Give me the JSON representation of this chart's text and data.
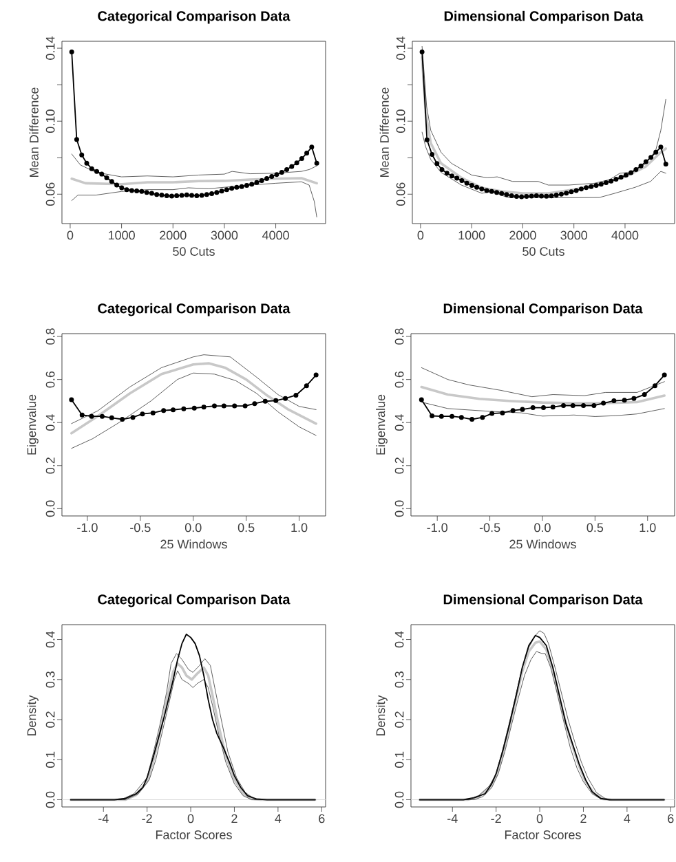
{
  "chart_data": [
    {
      "type": "line",
      "title": "Categorical Comparison Data",
      "xlabel": "50 Cuts",
      "ylabel": "Mean Difference",
      "xlim": [
        -160,
        4970
      ],
      "ylim": [
        0.0439,
        0.1438
      ],
      "xticks": [
        0,
        1000,
        2000,
        3000,
        4000
      ],
      "yticks": [
        0.06,
        {
          "value": 0.08,
          "label": null
        },
        {
          "value": 0.1,
          "label": "0.10"
        },
        {
          "value": 0.12,
          "label": null
        },
        0.14
      ],
      "series": [
        {
          "color": "#1a1a1a",
          "x": [
            30,
            200,
            500,
            1000,
            1500,
            2000,
            2500,
            3000,
            3150,
            3500,
            4000,
            4500,
            4650,
            4798
          ],
          "values": [
            0.082,
            0.076,
            0.072,
            0.0695,
            0.07,
            0.0695,
            0.0705,
            0.071,
            0.0725,
            0.0712,
            0.0715,
            0.0725,
            0.0735,
            0.0755
          ]
        },
        {
          "color": "#1a1a1a",
          "x": [
            30,
            150,
            500,
            1000,
            1500,
            2000,
            2300,
            2700,
            3000,
            3500,
            4000,
            4500,
            4650,
            4750,
            4798
          ],
          "values": [
            0.0565,
            0.0595,
            0.0595,
            0.0615,
            0.0625,
            0.0625,
            0.0635,
            0.063,
            0.0638,
            0.065,
            0.066,
            0.0668,
            0.065,
            0.056,
            0.0475
          ]
        },
        {
          "color": "#c8c8c8",
          "x": [
            30,
            300,
            1000,
            1500,
            2000,
            2500,
            3000,
            3500,
            4000,
            4500,
            4798
          ],
          "values": [
            0.0685,
            0.066,
            0.0655,
            0.0665,
            0.0665,
            0.0672,
            0.0673,
            0.068,
            0.0685,
            0.0688,
            0.066
          ]
        },
        {
          "color": "#000000",
          "marker": "circle",
          "x": [
            30,
            127,
            225,
            322,
            419,
            517,
            614,
            711,
            808,
            906,
            1003,
            1100,
            1198,
            1295,
            1392,
            1490,
            1587,
            1684,
            1781,
            1879,
            1976,
            2073,
            2171,
            2268,
            2365,
            2463,
            2560,
            2657,
            2754,
            2852,
            2949,
            3046,
            3144,
            3241,
            3338,
            3436,
            3533,
            3630,
            3727,
            3825,
            3922,
            4019,
            4117,
            4214,
            4311,
            4409,
            4506,
            4603,
            4700,
            4798
          ],
          "values": [
            0.138,
            0.09,
            0.0815,
            0.077,
            0.074,
            0.0725,
            0.071,
            0.069,
            0.067,
            0.065,
            0.0635,
            0.0625,
            0.062,
            0.0618,
            0.0615,
            0.061,
            0.0605,
            0.0598,
            0.0595,
            0.0592,
            0.059,
            0.0592,
            0.0594,
            0.0596,
            0.0594,
            0.0592,
            0.0594,
            0.0598,
            0.0603,
            0.061,
            0.0617,
            0.0625,
            0.0632,
            0.0638,
            0.0642,
            0.0648,
            0.0655,
            0.0664,
            0.0675,
            0.0686,
            0.0697,
            0.0708,
            0.072,
            0.0735,
            0.0752,
            0.0772,
            0.0795,
            0.0825,
            0.0858,
            0.077
          ]
        }
      ]
    },
    {
      "type": "line",
      "title": "Dimensional Comparison Data",
      "xlabel": "50 Cuts",
      "ylabel": "Mean Difference",
      "xlim": [
        -160,
        4970
      ],
      "ylim": [
        0.0439,
        0.1438
      ],
      "xticks": [
        0,
        1000,
        2000,
        3000,
        4000
      ],
      "yticks": [
        0.06,
        {
          "value": 0.08,
          "label": null
        },
        {
          "value": 0.1,
          "label": "0.10"
        },
        {
          "value": 0.12,
          "label": null
        },
        0.14
      ],
      "series": [
        {
          "color": "#1a1a1a",
          "x": [
            30,
            60,
            120,
            200,
            400,
            600,
            1000,
            1300,
            1500,
            1800,
            2300,
            2500,
            2900,
            3400,
            3700,
            3900,
            4100,
            4400,
            4600,
            4700,
            4798
          ],
          "values": [
            0.141,
            0.13,
            0.108,
            0.095,
            0.083,
            0.077,
            0.0705,
            0.069,
            0.0695,
            0.067,
            0.067,
            0.065,
            0.065,
            0.066,
            0.068,
            0.0715,
            0.072,
            0.0765,
            0.084,
            0.095,
            0.112
          ]
        },
        {
          "color": "#1a1a1a",
          "x": [
            30,
            100,
            200,
            400,
            800,
            1200,
            1400,
            1700,
            2400,
            2500,
            3500,
            3800,
            4200,
            4500,
            4700,
            4798
          ],
          "values": [
            0.094,
            0.086,
            0.079,
            0.072,
            0.065,
            0.0605,
            0.0615,
            0.0582,
            0.0582,
            0.058,
            0.0582,
            0.0605,
            0.0638,
            0.067,
            0.0725,
            0.0715
          ]
        },
        {
          "color": "#c8c8c8",
          "x": [
            30,
            100,
            200,
            400,
            800,
            1200,
            1600,
            2000,
            2500,
            3000,
            3500,
            4000,
            4400,
            4700,
            4798
          ],
          "values": [
            0.135,
            0.105,
            0.088,
            0.077,
            0.069,
            0.0635,
            0.0615,
            0.0605,
            0.0605,
            0.0625,
            0.0655,
            0.0695,
            0.075,
            0.083,
            0.085
          ]
        },
        {
          "color": "#000000",
          "marker": "circle",
          "x": [
            30,
            127,
            225,
            322,
            419,
            517,
            614,
            711,
            808,
            906,
            1003,
            1100,
            1198,
            1295,
            1392,
            1490,
            1587,
            1684,
            1781,
            1879,
            1976,
            2073,
            2171,
            2268,
            2365,
            2463,
            2560,
            2657,
            2754,
            2852,
            2949,
            3046,
            3144,
            3241,
            3338,
            3436,
            3533,
            3630,
            3727,
            3825,
            3922,
            4019,
            4117,
            4214,
            4311,
            4409,
            4506,
            4603,
            4700,
            4798
          ],
          "values": [
            0.138,
            0.0898,
            0.0818,
            0.0768,
            0.0735,
            0.0715,
            0.07,
            0.0688,
            0.0675,
            0.066,
            0.0648,
            0.0638,
            0.0628,
            0.062,
            0.0615,
            0.061,
            0.0604,
            0.0598,
            0.0592,
            0.0588,
            0.0586,
            0.0588,
            0.059,
            0.0592,
            0.059,
            0.0589,
            0.0591,
            0.0595,
            0.06,
            0.0606,
            0.0613,
            0.062,
            0.0628,
            0.0636,
            0.0642,
            0.0648,
            0.0655,
            0.0663,
            0.0672,
            0.0682,
            0.0693,
            0.0705,
            0.0718,
            0.0735,
            0.0755,
            0.0778,
            0.0802,
            0.083,
            0.0858,
            0.0765
          ]
        }
      ]
    },
    {
      "type": "line",
      "title": "Categorical Comparison Data",
      "xlabel": "25 Windows",
      "ylabel": "Eigenvalue",
      "xlim": [
        -1.24,
        1.25
      ],
      "ylim": [
        -0.034,
        0.813
      ],
      "xticks": [
        {
          "value": -1,
          "label": "-1.0"
        },
        -0.5,
        {
          "value": 0,
          "label": "0.0"
        },
        0.5,
        {
          "value": 1,
          "label": "1.0"
        }
      ],
      "yticks": [
        {
          "value": 0,
          "label": "0.0"
        },
        0.2,
        0.4,
        0.6,
        0.8
      ],
      "series": [
        {
          "color": "#1a1a1a",
          "x": [
            -1.15,
            -0.9,
            -0.6,
            -0.3,
            0,
            0.1,
            0.35,
            0.6,
            0.8,
            1.0,
            1.16
          ],
          "values": [
            0.395,
            0.455,
            0.565,
            0.655,
            0.705,
            0.715,
            0.705,
            0.61,
            0.53,
            0.475,
            0.46
          ]
        },
        {
          "color": "#1a1a1a",
          "x": [
            -1.15,
            -0.95,
            -0.7,
            -0.4,
            -0.15,
            0,
            0.2,
            0.4,
            0.6,
            0.8,
            1.0,
            1.16
          ],
          "values": [
            0.28,
            0.325,
            0.4,
            0.5,
            0.6,
            0.63,
            0.625,
            0.595,
            0.535,
            0.45,
            0.38,
            0.34
          ]
        },
        {
          "color": "#c8c8c8",
          "x": [
            -1.15,
            -0.9,
            -0.6,
            -0.3,
            0,
            0.15,
            0.3,
            0.5,
            0.7,
            0.9,
            1.16
          ],
          "values": [
            0.35,
            0.43,
            0.535,
            0.625,
            0.67,
            0.675,
            0.655,
            0.6,
            0.525,
            0.46,
            0.395
          ]
        },
        {
          "color": "#000000",
          "marker": "circle",
          "x": [
            -1.15,
            -1.05,
            -0.96,
            -0.86,
            -0.77,
            -0.67,
            -0.57,
            -0.48,
            -0.38,
            -0.28,
            -0.19,
            -0.09,
            0.01,
            0.1,
            0.2,
            0.29,
            0.39,
            0.49,
            0.58,
            0.68,
            0.78,
            0.87,
            0.97,
            1.07,
            1.16
          ],
          "values": [
            0.506,
            0.435,
            0.429,
            0.429,
            0.422,
            0.415,
            0.424,
            0.44,
            0.445,
            0.456,
            0.459,
            0.464,
            0.467,
            0.472,
            0.477,
            0.477,
            0.477,
            0.477,
            0.488,
            0.499,
            0.502,
            0.512,
            0.527,
            0.571,
            0.621
          ]
        }
      ]
    },
    {
      "type": "line",
      "title": "Dimensional Comparison Data",
      "xlabel": "25 Windows",
      "ylabel": "Eigenvalue",
      "xlim": [
        -1.25,
        1.257
      ],
      "ylim": [
        -0.034,
        0.813
      ],
      "xticks": [
        {
          "value": -1,
          "label": "-1.0"
        },
        -0.5,
        {
          "value": 0,
          "label": "0.0"
        },
        0.5,
        {
          "value": 1,
          "label": "1.0"
        }
      ],
      "yticks": [
        {
          "value": 0,
          "label": "0.0"
        },
        0.2,
        0.4,
        0.6,
        0.8
      ],
      "series": [
        {
          "color": "#1a1a1a",
          "x": [
            -1.15,
            -0.9,
            -0.7,
            -0.4,
            -0.1,
            0.1,
            0.4,
            0.6,
            0.9,
            1.16
          ],
          "values": [
            0.655,
            0.6,
            0.575,
            0.55,
            0.52,
            0.53,
            0.525,
            0.54,
            0.54,
            0.59
          ]
        },
        {
          "color": "#1a1a1a",
          "x": [
            -1.15,
            -0.9,
            -0.5,
            -0.2,
            0,
            0.3,
            0.5,
            0.7,
            0.9,
            1.16
          ],
          "values": [
            0.495,
            0.465,
            0.452,
            0.445,
            0.43,
            0.435,
            0.428,
            0.432,
            0.44,
            0.465
          ]
        },
        {
          "color": "#c8c8c8",
          "x": [
            -1.15,
            -0.9,
            -0.6,
            -0.3,
            0,
            0.3,
            0.6,
            0.9,
            1.16
          ],
          "values": [
            0.565,
            0.53,
            0.51,
            0.5,
            0.493,
            0.49,
            0.49,
            0.495,
            0.525
          ]
        },
        {
          "color": "#000000",
          "marker": "circle",
          "x": [
            -1.15,
            -1.05,
            -0.96,
            -0.86,
            -0.77,
            -0.67,
            -0.57,
            -0.48,
            -0.38,
            -0.28,
            -0.19,
            -0.09,
            0.01,
            0.1,
            0.2,
            0.29,
            0.39,
            0.49,
            0.58,
            0.68,
            0.78,
            0.87,
            0.97,
            1.07,
            1.16
          ],
          "values": [
            0.506,
            0.431,
            0.429,
            0.429,
            0.424,
            0.415,
            0.424,
            0.442,
            0.445,
            0.456,
            0.461,
            0.469,
            0.469,
            0.472,
            0.479,
            0.479,
            0.479,
            0.479,
            0.49,
            0.501,
            0.504,
            0.512,
            0.53,
            0.571,
            0.621
          ]
        }
      ]
    },
    {
      "type": "line",
      "title": "Categorical Comparison Data",
      "xlabel": "Factor Scores",
      "ylabel": "Density",
      "xlim": [
        -5.9,
        6.18
      ],
      "ylim": [
        -0.018,
        0.437
      ],
      "xticks": [
        -4,
        -2,
        0,
        2,
        4,
        6
      ],
      "yticks": [
        {
          "value": 0,
          "label": "0.0"
        },
        0.1,
        0.2,
        0.3,
        0.4
      ],
      "ref_lines": [
        {
          "axis": "y",
          "value": 0,
          "color": "#d9d9d9"
        }
      ],
      "series": [
        {
          "color": "#1a1a1a",
          "x": [
            -5.5,
            -3.2,
            -2.6,
            -2,
            -1.7,
            -1.4,
            -1.1,
            -0.9,
            -0.65,
            -0.4,
            -0.1,
            0.1,
            0.4,
            0.65,
            0.9,
            1.1,
            1.4,
            1.7,
            2.1,
            2.5,
            2.9,
            3.3,
            5.7
          ],
          "values": [
            0,
            0,
            0.015,
            0.055,
            0.12,
            0.19,
            0.27,
            0.34,
            0.365,
            0.35,
            0.325,
            0.318,
            0.335,
            0.352,
            0.335,
            0.28,
            0.2,
            0.12,
            0.055,
            0.018,
            0.003,
            0,
            0
          ]
        },
        {
          "color": "#1a1a1a",
          "x": [
            -5.5,
            -3,
            -2.4,
            -1.9,
            -1.6,
            -1.3,
            -1,
            -0.75,
            -0.6,
            -0.4,
            -0.1,
            0.1,
            0.3,
            0.6,
            0.8,
            1,
            1.3,
            1.6,
            2,
            2.4,
            2.8,
            5.7
          ],
          "values": [
            0,
            0,
            0.015,
            0.05,
            0.1,
            0.17,
            0.24,
            0.3,
            0.322,
            0.3,
            0.29,
            0.28,
            0.29,
            0.3,
            0.28,
            0.235,
            0.16,
            0.095,
            0.04,
            0.01,
            0,
            0
          ]
        },
        {
          "color": "#c8c8c8",
          "x": [
            -5.5,
            -3,
            -2.5,
            -2,
            -1.7,
            -1.4,
            -1.1,
            -0.8,
            -0.6,
            -0.4,
            -0.2,
            0.05,
            0.3,
            0.6,
            0.8,
            1,
            1.3,
            1.6,
            2,
            2.4,
            2.8,
            3.2,
            5.7
          ],
          "values": [
            0,
            0,
            0.012,
            0.045,
            0.1,
            0.17,
            0.25,
            0.32,
            0.34,
            0.33,
            0.31,
            0.3,
            0.315,
            0.33,
            0.31,
            0.26,
            0.18,
            0.11,
            0.05,
            0.015,
            0.002,
            0,
            0
          ]
        },
        {
          "color": "#000000",
          "x": [
            -5.5,
            -3.5,
            -3,
            -2.5,
            -2.2,
            -2,
            -1.7,
            -1.5,
            -1.2,
            -1,
            -0.8,
            -0.6,
            -0.4,
            -0.2,
            0,
            0.2,
            0.4,
            0.6,
            0.8,
            1,
            1.2,
            1.5,
            1.8,
            2,
            2.3,
            2.6,
            3,
            3.5,
            5.7
          ],
          "values": [
            0,
            0,
            0.003,
            0.015,
            0.03,
            0.055,
            0.11,
            0.15,
            0.21,
            0.255,
            0.3,
            0.35,
            0.39,
            0.413,
            0.405,
            0.39,
            0.36,
            0.31,
            0.25,
            0.2,
            0.165,
            0.13,
            0.09,
            0.06,
            0.03,
            0.01,
            0.002,
            0,
            0
          ]
        }
      ]
    },
    {
      "type": "line",
      "title": "Dimensional Comparison Data",
      "xlabel": "Factor Scores",
      "ylabel": "Density",
      "xlim": [
        -5.9,
        6.18
      ],
      "ylim": [
        -0.018,
        0.437
      ],
      "xticks": [
        -4,
        -2,
        0,
        2,
        4,
        6
      ],
      "yticks": [
        {
          "value": 0,
          "label": "0.0"
        },
        0.1,
        0.2,
        0.3,
        0.4
      ],
      "ref_lines": [
        {
          "axis": "y",
          "value": 0,
          "color": "#d9d9d9"
        }
      ],
      "series": [
        {
          "color": "#1a1a1a",
          "x": [
            -5.5,
            -3.3,
            -2.8,
            -2.3,
            -2,
            -1.7,
            -1.4,
            -1.1,
            -0.8,
            -0.5,
            -0.2,
            0,
            0.2,
            0.4,
            0.7,
            1,
            1.3,
            1.6,
            1.9,
            2.2,
            2.6,
            3,
            3.3,
            5.7
          ],
          "values": [
            0,
            0,
            0.01,
            0.035,
            0.065,
            0.125,
            0.19,
            0.26,
            0.33,
            0.38,
            0.41,
            0.422,
            0.415,
            0.39,
            0.33,
            0.265,
            0.2,
            0.145,
            0.095,
            0.055,
            0.018,
            0.003,
            0,
            0
          ]
        },
        {
          "color": "#1a1a1a",
          "x": [
            -5.5,
            -3,
            -2.6,
            -2.2,
            -1.9,
            -1.6,
            -1.3,
            -1,
            -0.7,
            -0.4,
            -0.15,
            0.1,
            0.25,
            0.5,
            0.8,
            1.1,
            1.4,
            1.7,
            2,
            2.4,
            2.8,
            3.2,
            5.7
          ],
          "values": [
            0,
            0,
            0.008,
            0.03,
            0.065,
            0.12,
            0.185,
            0.25,
            0.31,
            0.35,
            0.37,
            0.365,
            0.365,
            0.33,
            0.265,
            0.195,
            0.13,
            0.08,
            0.045,
            0.015,
            0.002,
            0,
            0
          ]
        },
        {
          "color": "#c8c8c8",
          "x": [
            -5.5,
            -3.3,
            -2.8,
            -2.3,
            -2,
            -1.7,
            -1.4,
            -1.1,
            -0.8,
            -0.5,
            -0.2,
            0,
            0.3,
            0.6,
            0.9,
            1.2,
            1.5,
            1.8,
            2.1,
            2.5,
            2.9,
            3.3,
            5.7
          ],
          "values": [
            0,
            0,
            0.008,
            0.03,
            0.06,
            0.115,
            0.18,
            0.25,
            0.32,
            0.37,
            0.392,
            0.395,
            0.375,
            0.325,
            0.255,
            0.19,
            0.135,
            0.085,
            0.045,
            0.015,
            0.002,
            0,
            0
          ]
        },
        {
          "color": "#000000",
          "x": [
            -5.5,
            -3.5,
            -3,
            -2.5,
            -2.2,
            -2,
            -1.7,
            -1.4,
            -1.1,
            -0.8,
            -0.5,
            -0.2,
            0,
            0.3,
            0.6,
            0.9,
            1.2,
            1.5,
            1.8,
            2.1,
            2.4,
            2.8,
            3.2,
            5.7
          ],
          "values": [
            0,
            0,
            0.005,
            0.015,
            0.04,
            0.065,
            0.12,
            0.185,
            0.255,
            0.33,
            0.385,
            0.41,
            0.405,
            0.385,
            0.33,
            0.26,
            0.19,
            0.14,
            0.09,
            0.05,
            0.02,
            0.003,
            0,
            0
          ]
        }
      ]
    }
  ]
}
